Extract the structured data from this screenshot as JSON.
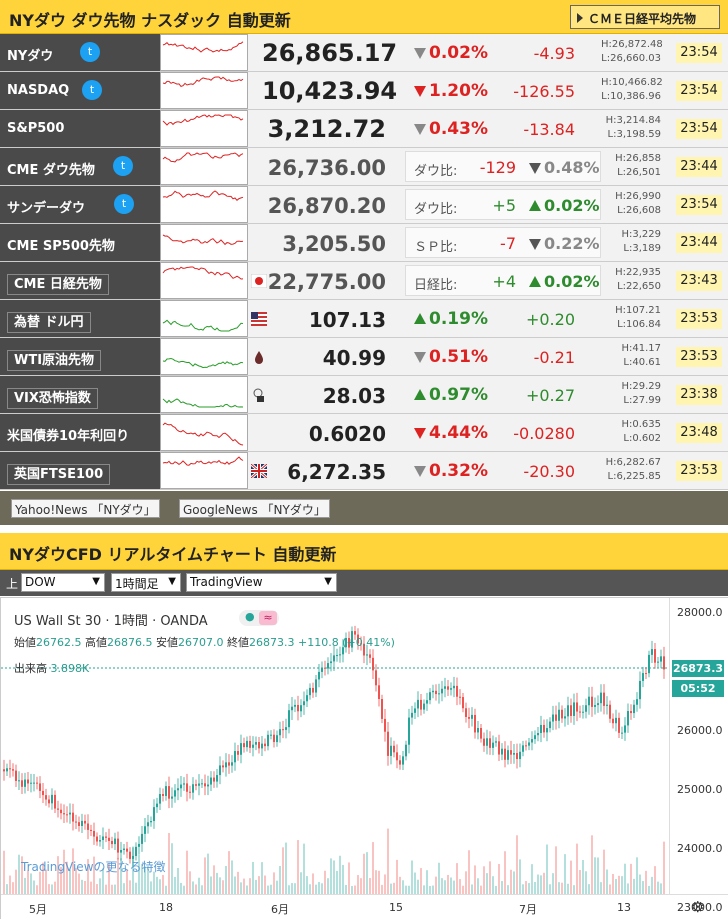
{
  "header1": {
    "title": "NYダウ ダウ先物 ナスダック 自動更新",
    "cme_button": "ＣＭＥ日経平均先物"
  },
  "rows": [
    {
      "name": "NYダウ",
      "twitter": true,
      "value": "26,865.17",
      "pct": "0.02%",
      "dir": "dn",
      "chg": "-4.93",
      "high": "H:26,872.48",
      "low": "L:26,660.03",
      "time": "23:54"
    },
    {
      "name": "NASDAQ",
      "twitter": true,
      "value": "10,423.94",
      "pct": "1.20%",
      "dir": "dn",
      "chg": "-126.55",
      "high": "H:10,466.82",
      "low": "L:10,386.96",
      "time": "23:54"
    },
    {
      "name": "S&P500",
      "twitter": false,
      "value": "3,212.72",
      "pct": "0.43%",
      "dir": "dn",
      "chg": "-13.84",
      "high": "H:3,214.84",
      "low": "L:3,198.59",
      "time": "23:54"
    },
    {
      "name": "CME ダウ先物",
      "twitter": true,
      "value": "26,736.00",
      "cmp_label": "ダウ比:",
      "cmp_diff": "-129",
      "cmp_pct": "0.48%",
      "dir": "dn",
      "high": "H:26,858",
      "low": "L:26,501",
      "time": "23:44"
    },
    {
      "name": "サンデーダウ",
      "twitter": true,
      "value": "26,870.20",
      "cmp_label": "ダウ比:",
      "cmp_diff": "+5",
      "cmp_pct": "0.02%",
      "dir": "up",
      "high": "H:26,990",
      "low": "L:26,608",
      "time": "23:54"
    },
    {
      "name": "CME SP500先物",
      "twitter": false,
      "value": "3,205.50",
      "cmp_label": "ＳＰ比:",
      "cmp_diff": "-7",
      "cmp_pct": "0.22%",
      "dir": "dn",
      "high": "H:3,229",
      "low": "L:3,189",
      "time": "23:44"
    },
    {
      "name": "CME 日経先物",
      "twitter": false,
      "value": "22,775.00",
      "cmp_label": "日経比:",
      "cmp_diff": "+4",
      "cmp_pct": "0.02%",
      "dir": "up",
      "high": "H:22,935",
      "low": "L:22,650",
      "time": "23:43"
    },
    {
      "name": "為替 ドル円",
      "twitter": false,
      "value": "107.13",
      "pct": "0.19%",
      "dir": "up",
      "chg": "+0.20",
      "high": "H:107.21",
      "low": "L:106.84",
      "time": "23:53"
    },
    {
      "name": "WTI原油先物",
      "twitter": false,
      "value": "40.99",
      "pct": "0.51%",
      "dir": "dn",
      "chg": "-0.21",
      "high": "H:41.17",
      "low": "L:40.61",
      "time": "23:53"
    },
    {
      "name": "VIX恐怖指数",
      "twitter": false,
      "value": "28.03",
      "pct": "0.97%",
      "dir": "up",
      "chg": "+0.27",
      "high": "H:29.29",
      "low": "L:27.99",
      "time": "23:38"
    },
    {
      "name": "米国債券10年利回り",
      "twitter": false,
      "value": "0.6020",
      "pct": "4.44%",
      "dir": "dn",
      "chg": "-0.0280",
      "high": "H:0.635",
      "low": "L:0.602",
      "time": "23:48"
    },
    {
      "name": "英国FTSE100",
      "twitter": false,
      "value": "6,272.35",
      "pct": "0.32%",
      "dir": "dn",
      "chg": "-20.30",
      "high": "H:6,282.67",
      "low": "L:6,225.85",
      "time": "23:53"
    }
  ],
  "news": {
    "yahoo": "Yahoo!News 「NYダウ」",
    "google": "GoogleNews 「NYダウ」"
  },
  "header2": {
    "title": "NYダウCFD リアルタイムチャート 自動更新"
  },
  "controls": {
    "label": "上",
    "symbol": "DOW",
    "interval": "1時間足",
    "provider": "TradingView"
  },
  "chart": {
    "title": "US Wall St 30 · 1時間 · OANDA",
    "ohlc": {
      "open_label": "始値",
      "open": "26762.5",
      "high_label": "高値",
      "high": "26876.5",
      "low_label": "安値",
      "low": "26707.0",
      "close_label": "終値",
      "close": "26873.3",
      "change": "+110.8 (+0.41%)"
    },
    "volume_label": "出来高",
    "volume": "3.898K",
    "last_price": "26873.3",
    "countdown": "05:52",
    "watermark": "TradingViewの更なる特徴",
    "y_ticks": [
      "28000.0",
      "27000.0",
      "26000.0",
      "25000.0",
      "24000.0",
      "23000.0"
    ],
    "x_ticks": [
      "5月",
      "18",
      "6月",
      "15",
      "7月",
      "13"
    ],
    "colors": {
      "up": "#26a69a",
      "down": "#ef5350"
    }
  }
}
